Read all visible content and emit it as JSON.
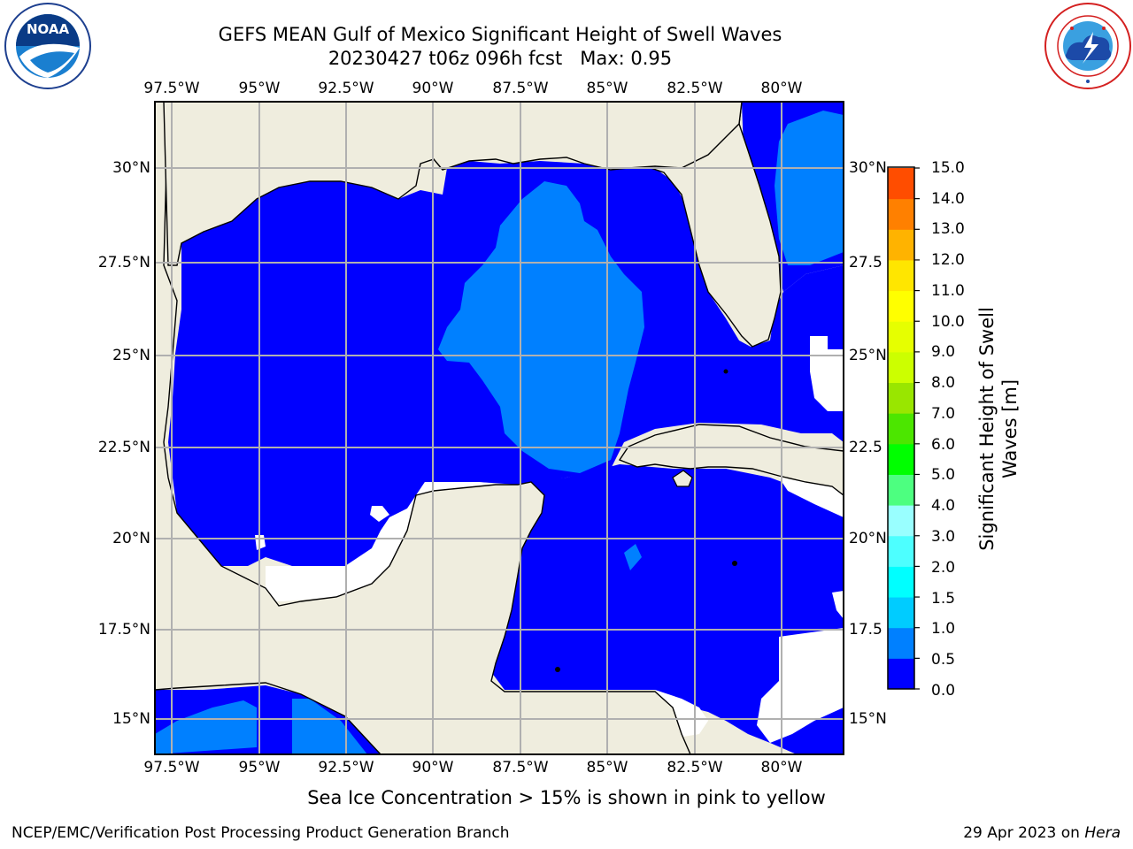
{
  "title": "GEFS MEAN Gulf of Mexico Significant Height of Swell Waves",
  "subtitle": "20230427 t06z 096h fcst   Max: 0.95",
  "lon_ticks": [
    "97.5°W",
    "95°W",
    "92.5°W",
    "90°W",
    "87.5°W",
    "85°W",
    "82.5°W",
    "80°W"
  ],
  "lat_ticks": [
    "30°N",
    "27.5°N",
    "25°N",
    "22.5°N",
    "20°N",
    "17.5°N",
    "15°N"
  ],
  "right_lat_ticks": [
    "30°N",
    "27.5",
    "25°N",
    "22.5",
    "20°N",
    "17.5",
    "15°N"
  ],
  "colorbar": {
    "title_line1": "Significant Height of Swell",
    "title_line2": "Waves [m]",
    "labels": [
      "15.0",
      "14.0",
      "13.0",
      "12.0",
      "11.0",
      "10.0",
      "9.0",
      "8.0",
      "7.0",
      "6.0",
      "5.0",
      "4.0",
      "3.0",
      "2.0",
      "1.5",
      "1.0",
      "0.5",
      "0.0"
    ],
    "colors": [
      "#0000ff",
      "#0080ff",
      "#00ccff",
      "#00ffff",
      "#4dffff",
      "#99ffff",
      "#4dff80",
      "#00ff00",
      "#4ce600",
      "#99e600",
      "#ccff00",
      "#e6ff00",
      "#ffff00",
      "#ffe600",
      "#ffb300",
      "#ff8000",
      "#ff4d00",
      "#ff0000"
    ]
  },
  "map_colors": {
    "land": "#efedde",
    "swell_low": "#0000ff",
    "swell_mid": "#0080ff",
    "no_data": "#ffffff",
    "grid": "#b0b0b0"
  },
  "note": "Sea Ice Concentration > 15% is shown in pink to yellow",
  "footer_left": "NCEP/EMC/Verification Post Processing Product Generation Branch",
  "footer_right_date": "29 Apr 2023 on ",
  "footer_right_host": "Hera",
  "logo_left": {
    "icon": "noaa-logo",
    "text": "NOAA"
  },
  "logo_right": {
    "icon": "nws-logo"
  }
}
